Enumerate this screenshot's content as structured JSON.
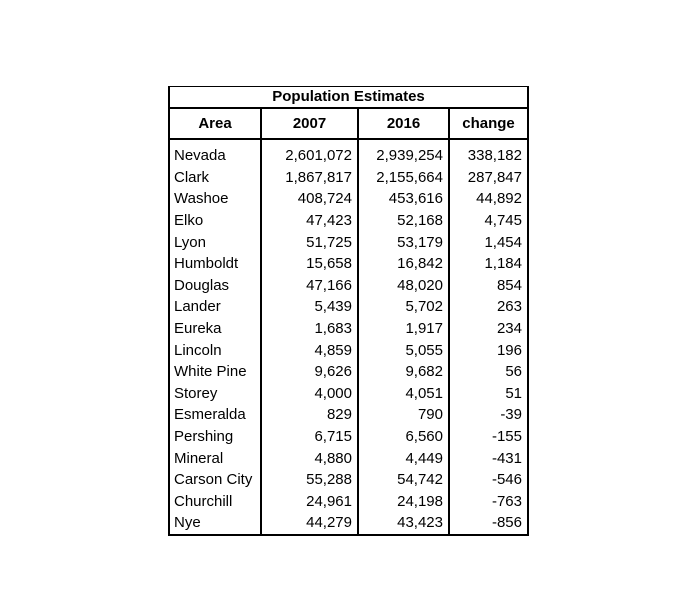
{
  "table": {
    "title": "Population Estimates",
    "headers": [
      "Area",
      "2007",
      "2016",
      "change"
    ],
    "rows": [
      [
        "Nevada",
        "2,601,072",
        "2,939,254",
        "338,182"
      ],
      [
        "Clark",
        "1,867,817",
        "2,155,664",
        "287,847"
      ],
      [
        "Washoe",
        "408,724",
        "453,616",
        "44,892"
      ],
      [
        "Elko",
        "47,423",
        "52,168",
        "4,745"
      ],
      [
        "Lyon",
        "51,725",
        "53,179",
        "1,454"
      ],
      [
        "Humboldt",
        "15,658",
        "16,842",
        "1,184"
      ],
      [
        "Douglas",
        "47,166",
        "48,020",
        "854"
      ],
      [
        "Lander",
        "5,439",
        "5,702",
        "263"
      ],
      [
        "Eureka",
        "1,683",
        "1,917",
        "234"
      ],
      [
        "Lincoln",
        "4,859",
        "5,055",
        "196"
      ],
      [
        "White Pine",
        "9,626",
        "9,682",
        "56"
      ],
      [
        "Storey",
        "4,000",
        "4,051",
        "51"
      ],
      [
        "Esmeralda",
        "829",
        "790",
        "-39"
      ],
      [
        "Pershing",
        "6,715",
        "6,560",
        "-155"
      ],
      [
        "Mineral",
        "4,880",
        "4,449",
        "-431"
      ],
      [
        "Carson City",
        "55,288",
        "54,742",
        "-546"
      ],
      [
        "Churchill",
        "24,961",
        "24,198",
        "-763"
      ],
      [
        "Nye",
        "44,279",
        "43,423",
        "-856"
      ]
    ],
    "border_color": "#000000",
    "text_color": "#000000",
    "background_color": "#ffffff"
  },
  "chart_data": {
    "type": "table",
    "title": "Population Estimates",
    "columns": [
      "Area",
      "2007",
      "2016",
      "change"
    ],
    "rows": [
      [
        "Nevada",
        2601072,
        2939254,
        338182
      ],
      [
        "Clark",
        1867817,
        2155664,
        287847
      ],
      [
        "Washoe",
        408724,
        453616,
        44892
      ],
      [
        "Elko",
        47423,
        52168,
        4745
      ],
      [
        "Lyon",
        51725,
        53179,
        1454
      ],
      [
        "Humboldt",
        15658,
        16842,
        1184
      ],
      [
        "Douglas",
        47166,
        48020,
        854
      ],
      [
        "Lander",
        5439,
        5702,
        263
      ],
      [
        "Eureka",
        1683,
        1917,
        234
      ],
      [
        "Lincoln",
        4859,
        5055,
        196
      ],
      [
        "White Pine",
        9626,
        9682,
        56
      ],
      [
        "Storey",
        4000,
        4051,
        51
      ],
      [
        "Esmeralda",
        829,
        790,
        -39
      ],
      [
        "Pershing",
        6715,
        6560,
        -155
      ],
      [
        "Mineral",
        4880,
        4449,
        -431
      ],
      [
        "Carson City",
        55288,
        54742,
        -546
      ],
      [
        "Churchill",
        24961,
        24198,
        -763
      ],
      [
        "Nye",
        44279,
        43423,
        -856
      ]
    ],
    "layout": {
      "grid": "vertical-dividers-only",
      "header_bold": true,
      "number_alignment": "right",
      "area_alignment": "left"
    }
  }
}
